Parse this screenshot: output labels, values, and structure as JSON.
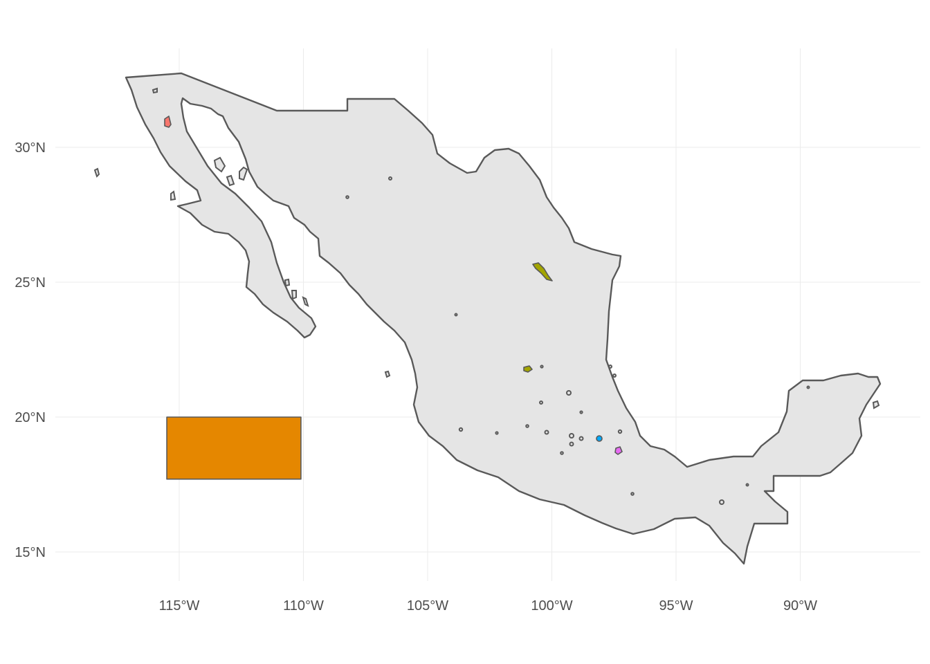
{
  "map": {
    "type": "choropleth-map",
    "region_name": "",
    "lon_ticks": [
      {
        "value": -115,
        "label": "115°W"
      },
      {
        "value": -110,
        "label": "110°W"
      },
      {
        "value": -105,
        "label": "105°W"
      },
      {
        "value": -100,
        "label": "100°W"
      },
      {
        "value": -95,
        "label": "95°W"
      },
      {
        "value": -90,
        "label": "90°W"
      }
    ],
    "lat_ticks": [
      {
        "value": 15,
        "label": "15°N"
      },
      {
        "value": 20,
        "label": "20°N"
      },
      {
        "value": 25,
        "label": "25°N"
      },
      {
        "value": 30,
        "label": "30°N"
      }
    ],
    "lon_range": [
      -119.5,
      -85.0
    ],
    "lat_range": [
      13.8,
      33.8
    ],
    "grid": true,
    "legend": "none",
    "colors": {
      "land_fill": "#e5e5e5",
      "outline": "#595959",
      "grid": "#ebebeb",
      "background": "#ffffff"
    },
    "highlighted_areas": [
      {
        "id": "area-red",
        "color": "#f8766d",
        "center": [
          -115.4,
          31.0
        ]
      },
      {
        "id": "area-olive",
        "color": "#a3a500",
        "center": [
          -100.5,
          25.5
        ]
      },
      {
        "id": "area-orange",
        "color": "#e58700",
        "bounds": {
          "lon": [
            -115.5,
            -110.1
          ],
          "lat": [
            17.7,
            20.0
          ]
        }
      },
      {
        "id": "area-green",
        "color": "#a3a500",
        "center": [
          -100.9,
          21.8
        ]
      },
      {
        "id": "area-blue",
        "color": "#00a9ff",
        "center": [
          -98.2,
          19.25
        ]
      },
      {
        "id": "area-magenta",
        "color": "#e76bf3",
        "center": [
          -96.9,
          18.85
        ]
      }
    ]
  }
}
